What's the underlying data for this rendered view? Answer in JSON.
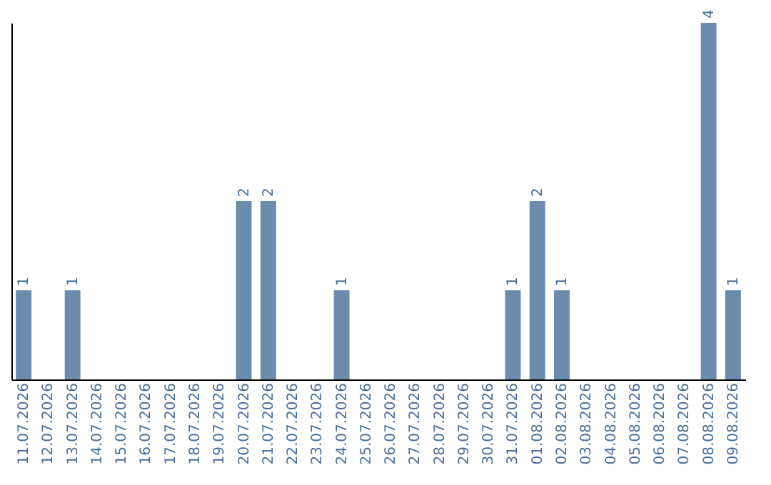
{
  "chart_data": {
    "type": "bar",
    "categories": [
      "11.07.2026",
      "12.07.2026",
      "13.07.2026",
      "14.07.2026",
      "15.07.2026",
      "16.07.2026",
      "17.07.2026",
      "18.07.2026",
      "19.07.2026",
      "20.07.2026",
      "21.07.2026",
      "22.07.2026",
      "23.07.2026",
      "24.07.2026",
      "25.07.2026",
      "26.07.2026",
      "27.07.2026",
      "28.07.2026",
      "29.07.2026",
      "30.07.2026",
      "31.07.2026",
      "01.08.2026",
      "02.08.2026",
      "03.08.2026",
      "04.08.2026",
      "05.08.2026",
      "06.08.2026",
      "07.08.2026",
      "08.08.2026",
      "09.08.2026"
    ],
    "values": [
      1,
      0,
      1,
      0,
      0,
      0,
      0,
      0,
      0,
      2,
      2,
      0,
      0,
      1,
      0,
      0,
      0,
      0,
      0,
      0,
      1,
      2,
      1,
      0,
      0,
      0,
      0,
      0,
      4,
      1
    ],
    "value_labels": [
      "1",
      null,
      "1",
      null,
      null,
      null,
      null,
      null,
      null,
      "2",
      "2",
      null,
      null,
      "1",
      null,
      null,
      null,
      null,
      null,
      null,
      "1",
      "2",
      "1",
      null,
      null,
      null,
      null,
      null,
      "4",
      "1"
    ],
    "color": "#6b8cad",
    "grid": false,
    "tick_labels": "x"
  }
}
